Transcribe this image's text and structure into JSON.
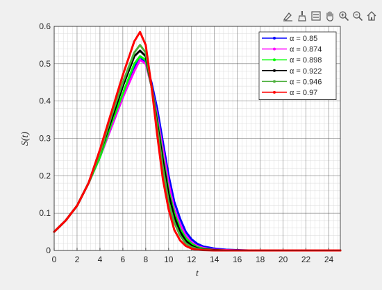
{
  "toolbar": {
    "icons": [
      "data-tips-icon",
      "brush-icon",
      "legend-toggle-icon",
      "pan-hand-icon",
      "zoom-in-icon",
      "zoom-out-icon",
      "home-icon"
    ]
  },
  "colors": {
    "figure_bg": "#f0f0f0",
    "axes_bg": "#ffffff",
    "grid_major": "#262626",
    "grid_minor": "#d9d9d9"
  },
  "chart_data": {
    "type": "line",
    "title": "",
    "xlabel": "t",
    "ylabel": "S(t)",
    "xlim": [
      0,
      25
    ],
    "ylim": [
      0,
      0.6
    ],
    "xticks": [
      0,
      2,
      4,
      6,
      8,
      10,
      12,
      14,
      16,
      18,
      20,
      22,
      24
    ],
    "yticks": [
      0,
      0.1,
      0.2,
      0.3,
      0.4,
      0.5,
      0.6
    ],
    "xtick_labels": [
      "0",
      "2",
      "4",
      "6",
      "8",
      "10",
      "12",
      "14",
      "16",
      "18",
      "20",
      "22",
      "24"
    ],
    "ytick_labels": [
      "0",
      "0.1",
      "0.2",
      "0.3",
      "0.4",
      "0.5",
      "0.6"
    ],
    "grid": "major and minor",
    "legend_position": "top-right",
    "x": [
      0,
      1,
      2,
      3,
      4,
      5,
      6,
      7,
      7.5,
      8,
      8.5,
      9,
      9.5,
      10,
      10.5,
      11,
      11.5,
      12,
      12.5,
      13,
      14,
      15,
      16,
      17,
      18,
      19,
      20,
      21,
      22,
      23,
      24,
      25
    ],
    "series": [
      {
        "name": "α = 0.85",
        "color": "#0000ff",
        "values": [
          0.05,
          0.08,
          0.12,
          0.18,
          0.25,
          0.33,
          0.41,
          0.49,
          0.52,
          0.5,
          0.45,
          0.38,
          0.29,
          0.2,
          0.13,
          0.085,
          0.05,
          0.03,
          0.018,
          0.011,
          0.005,
          0.002,
          0.001,
          0,
          0,
          0,
          0,
          0,
          0,
          0,
          0,
          0
        ]
      },
      {
        "name": "α = 0.874",
        "color": "#ff00ff",
        "values": [
          0.05,
          0.08,
          0.12,
          0.18,
          0.25,
          0.33,
          0.41,
          0.48,
          0.51,
          0.5,
          0.44,
          0.36,
          0.27,
          0.18,
          0.11,
          0.07,
          0.04,
          0.022,
          0.012,
          0.007,
          0.002,
          0.001,
          0,
          0,
          0,
          0,
          0,
          0,
          0,
          0,
          0,
          0
        ]
      },
      {
        "name": "α = 0.898",
        "color": "#00ff00",
        "values": [
          0.05,
          0.08,
          0.12,
          0.18,
          0.25,
          0.34,
          0.42,
          0.5,
          0.52,
          0.51,
          0.44,
          0.35,
          0.25,
          0.16,
          0.1,
          0.058,
          0.033,
          0.018,
          0.009,
          0.005,
          0.001,
          0,
          0,
          0,
          0,
          0,
          0,
          0,
          0,
          0,
          0,
          0
        ]
      },
      {
        "name": "α = 0.922",
        "color": "#000000",
        "values": [
          0.05,
          0.08,
          0.12,
          0.18,
          0.26,
          0.35,
          0.44,
          0.52,
          0.535,
          0.52,
          0.44,
          0.34,
          0.24,
          0.15,
          0.09,
          0.05,
          0.026,
          0.013,
          0.006,
          0.003,
          0.001,
          0,
          0,
          0,
          0,
          0,
          0,
          0,
          0,
          0,
          0,
          0
        ]
      },
      {
        "name": "α = 0.946",
        "color": "#4caf3c",
        "values": [
          0.05,
          0.08,
          0.12,
          0.18,
          0.26,
          0.36,
          0.45,
          0.53,
          0.55,
          0.53,
          0.44,
          0.33,
          0.22,
          0.13,
          0.075,
          0.04,
          0.019,
          0.009,
          0.004,
          0.002,
          0,
          0,
          0,
          0,
          0,
          0,
          0,
          0,
          0,
          0,
          0,
          0
        ]
      },
      {
        "name": "α = 0.97",
        "color": "#ff0000",
        "values": [
          0.05,
          0.08,
          0.12,
          0.18,
          0.27,
          0.37,
          0.47,
          0.56,
          0.585,
          0.55,
          0.44,
          0.31,
          0.19,
          0.11,
          0.055,
          0.027,
          0.012,
          0.005,
          0.002,
          0.001,
          0,
          0,
          0,
          0,
          0,
          0,
          0,
          0,
          0,
          0,
          0,
          0
        ]
      }
    ]
  }
}
